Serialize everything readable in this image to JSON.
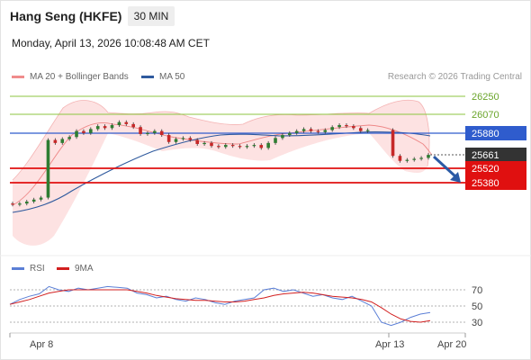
{
  "header": {
    "title": "Hang Seng (HKFE)",
    "timeframe": "30 MIN",
    "datetime": "Monday, April 13, 2026 10:08:48 AM CET"
  },
  "legend_main": [
    {
      "label": "MA 20 + Bollinger Bands",
      "color": "#f08c8c"
    },
    {
      "label": "MA 50",
      "color": "#2f5a9e"
    }
  ],
  "copyright": "Research © 2026 Trading Central",
  "legend_rsi": [
    {
      "label": "RSI",
      "color": "#5b7fd6"
    },
    {
      "label": "9MA",
      "color": "#d21f1f"
    }
  ],
  "price_labels": {
    "l26250": "26250",
    "l26070": "26070",
    "l25880": "25880",
    "l25661": "25661",
    "l25520": "25520",
    "l25380": "25380"
  },
  "rsi_labels": {
    "r70": "70",
    "r50": "50",
    "r30": "30"
  },
  "x_labels": {
    "apr8": "Apr 8",
    "apr13": "Apr 13",
    "apr20": "Apr 20"
  },
  "colors": {
    "resistance": "#8cc63f",
    "pivot": "#2f5ccd",
    "support": "#e01010",
    "last_price": "#333333",
    "candle_up": "#2e7d32",
    "candle_down": "#c62828",
    "bollinger_fill": "#fde2e2"
  },
  "chart_data": [
    {
      "type": "candlestick",
      "title": "Hang Seng (HKFE)",
      "y_axis_ticks": [
        26250,
        26070,
        25880,
        25661,
        25520,
        25380
      ],
      "last_price": 25661,
      "levels": [
        {
          "value": 26250,
          "kind": "resistance"
        },
        {
          "value": 26070,
          "kind": "resistance"
        },
        {
          "value": 25880,
          "kind": "pivot"
        },
        {
          "value": 25520,
          "kind": "support"
        },
        {
          "value": 25380,
          "kind": "support"
        }
      ],
      "x_ticks": [
        "Apr 8",
        "Apr 13",
        "Apr 20"
      ],
      "series": [
        {
          "name": "MA 20 + Bollinger Bands"
        },
        {
          "name": "MA 50"
        }
      ],
      "close_approx": [
        25160,
        25170,
        25190,
        25210,
        25230,
        25810,
        25780,
        25820,
        25840,
        25900,
        25880,
        25920,
        25950,
        25930,
        25960,
        25990,
        25970,
        25940,
        25870,
        25880,
        25900,
        25860,
        25790,
        25820,
        25830,
        25810,
        25770,
        25780,
        25750,
        25740,
        25760,
        25750,
        25740,
        25750,
        25760,
        25730,
        25780,
        25830,
        25860,
        25880,
        25900,
        25920,
        25900,
        25890,
        25910,
        25940,
        25960,
        25950,
        25930,
        25900,
        25910,
        25650,
        25600,
        25610,
        25620,
        25630,
        25660
      ]
    },
    {
      "type": "line",
      "title": "RSI",
      "y_axis_ticks": [
        70,
        50,
        30
      ],
      "series": [
        {
          "name": "RSI",
          "values": [
            52,
            58,
            62,
            65,
            74,
            70,
            68,
            72,
            70,
            72,
            74,
            73,
            72,
            66,
            64,
            60,
            62,
            58,
            56,
            60,
            58,
            54,
            52,
            56,
            58,
            60,
            70,
            72,
            68,
            70,
            66,
            62,
            64,
            60,
            58,
            62,
            56,
            50,
            30,
            26,
            30,
            36,
            40,
            42
          ]
        },
        {
          "name": "9MA",
          "values": [
            52,
            55,
            58,
            62,
            66,
            68,
            70,
            70,
            70,
            70,
            70,
            70,
            70,
            68,
            66,
            63,
            61,
            59,
            58,
            57,
            57,
            56,
            55,
            55,
            56,
            58,
            60,
            63,
            65,
            66,
            67,
            66,
            64,
            62,
            61,
            60,
            58,
            55,
            48,
            40,
            34,
            31,
            30,
            32
          ]
        }
      ]
    }
  ]
}
